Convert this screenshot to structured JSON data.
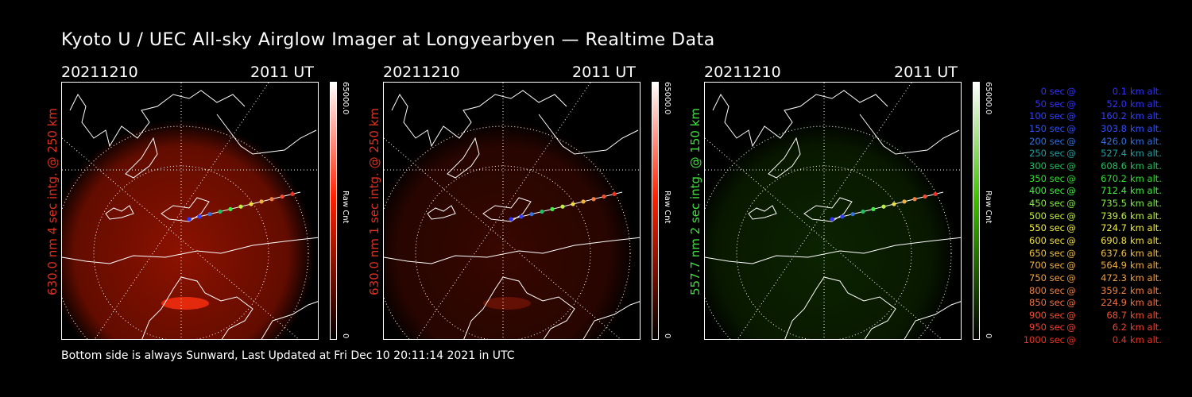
{
  "title": "Kyoto U / UEC All-sky Airglow Imager at Longyearbyen — Realtime Data",
  "footer": "Bottom side is always Sunward, Last Updated at Fri Dec 10 20:11:14 2021 in UTC",
  "panels": [
    {
      "date": "20211210",
      "time": "2011 UT",
      "ylabel": "630.0 nm 4 sec intg. @ 250 km",
      "ylabel_color": "#e03020",
      "cbar_max": "65000.0",
      "cbar_min": "0",
      "cbar_unit": "Raw Cnt",
      "tint": "#ff2000"
    },
    {
      "date": "20211210",
      "time": "2011 UT",
      "ylabel": "630.0 nm 1 sec intg. @ 250 km",
      "ylabel_color": "#e03020",
      "cbar_max": "65000.0",
      "cbar_min": "0",
      "cbar_unit": "Raw Cnt",
      "tint": "#ff2000"
    },
    {
      "date": "20211210",
      "time": "2011 UT",
      "ylabel": "557.7 nm 2 sec intg. @ 150 km",
      "ylabel_color": "#40e040",
      "cbar_max": "65000.0",
      "cbar_min": "0",
      "cbar_unit": "Raw Cnt",
      "tint": "#40c000"
    }
  ],
  "legend": [
    {
      "sec": "0 sec",
      "alt": "0.1",
      "color": "#3030ff"
    },
    {
      "sec": "50 sec",
      "alt": "52.0",
      "color": "#3030ff"
    },
    {
      "sec": "100 sec",
      "alt": "160.2",
      "color": "#3040ff"
    },
    {
      "sec": "150 sec",
      "alt": "303.8",
      "color": "#3050ff"
    },
    {
      "sec": "200 sec",
      "alt": "426.0",
      "color": "#3070e0"
    },
    {
      "sec": "250 sec",
      "alt": "527.4",
      "color": "#20a0a0"
    },
    {
      "sec": "300 sec",
      "alt": "608.6",
      "color": "#20c060"
    },
    {
      "sec": "350 sec",
      "alt": "670.2",
      "color": "#30e030"
    },
    {
      "sec": "400 sec",
      "alt": "712.4",
      "color": "#40f040"
    },
    {
      "sec": "450 sec",
      "alt": "735.5",
      "color": "#80f040"
    },
    {
      "sec": "500 sec",
      "alt": "739.6",
      "color": "#c0f040"
    },
    {
      "sec": "550 sec",
      "alt": "724.7",
      "color": "#f0f040"
    },
    {
      "sec": "600 sec",
      "alt": "690.8",
      "color": "#f0e040"
    },
    {
      "sec": "650 sec",
      "alt": "637.6",
      "color": "#f0c040"
    },
    {
      "sec": "700 sec",
      "alt": "564.9",
      "color": "#f0b040"
    },
    {
      "sec": "750 sec",
      "alt": "472.3",
      "color": "#f0a040"
    },
    {
      "sec": "800 sec",
      "alt": "359.2",
      "color": "#f08040"
    },
    {
      "sec": "850 sec",
      "alt": "224.9",
      "color": "#f07040"
    },
    {
      "sec": "900 sec",
      "alt": "68.7",
      "color": "#f05030"
    },
    {
      "sec": "950 sec",
      "alt": "6.2",
      "color": "#f04030"
    },
    {
      "sec": "1000 sec",
      "alt": "0.4",
      "color": "#f03020"
    }
  ],
  "legend_at": "@",
  "legend_unit": "km alt."
}
